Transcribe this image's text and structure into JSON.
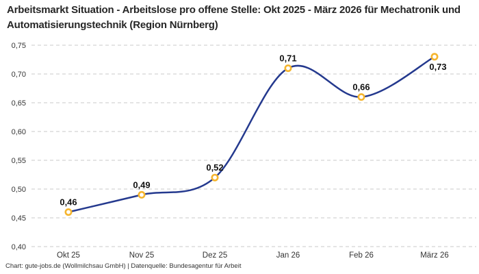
{
  "title": "Arbeitsmarkt Situation - Arbeitslose pro offene Stelle: Okt 2025 - März 2026 für Mechatronik und Automatisierungstechnik (Region Nürnberg)",
  "footer": "Chart: gute-jobs.de (Wollmilchsau GmbH) | Datenquelle: Bundesagentur für Arbeit",
  "colors": {
    "line": "#24398e",
    "marker_ring": "#f5b52e",
    "marker_fill": "#ffffff",
    "grid": "#c9c9c9",
    "title_text": "#262626",
    "axis_text": "#333333",
    "value_text": "#111111"
  },
  "chart_data": {
    "type": "line",
    "categories": [
      "Okt 25",
      "Nov 25",
      "Dez 25",
      "Jan 26",
      "Feb 26",
      "März 26"
    ],
    "values": [
      0.46,
      0.49,
      0.52,
      0.71,
      0.66,
      0.73
    ],
    "value_labels": [
      "0,46",
      "0,49",
      "0,52",
      "0,71",
      "0,66",
      "0,73"
    ],
    "value_label_positions": [
      "above",
      "above",
      "above",
      "above",
      "above",
      "below"
    ],
    "yticks": [
      0.75,
      0.7,
      0.65,
      0.6,
      0.55,
      0.5,
      0.45,
      0.4
    ],
    "ytick_labels": [
      "0,75",
      "0,70",
      "0,65",
      "0,60",
      "0,55",
      "0,50",
      "0,45",
      "0,40"
    ],
    "ylim": [
      0.4,
      0.75
    ],
    "xlabel": "",
    "ylabel": "",
    "grid": "dashed-horizontal",
    "legend": "none",
    "smooth": true
  }
}
